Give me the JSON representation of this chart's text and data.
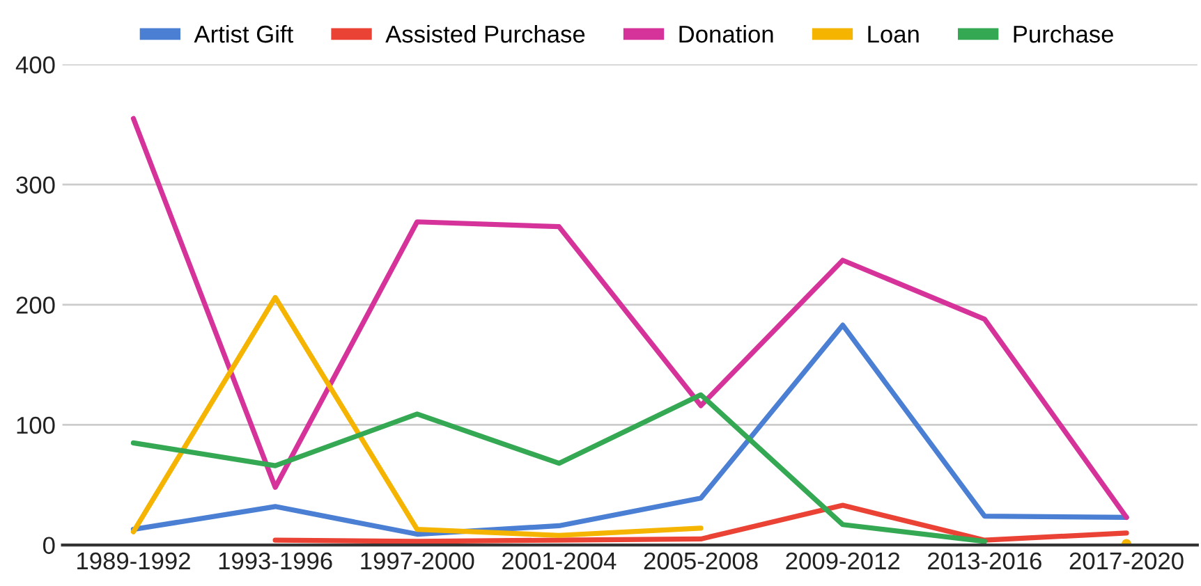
{
  "chart_data": {
    "type": "line",
    "categories": [
      "1989-1992",
      "1993-1996",
      "1997-2000",
      "2001-2004",
      "2005-2008",
      "2009-2012",
      "2013-2016",
      "2017-2020"
    ],
    "series": [
      {
        "name": "Artist Gift",
        "color": "#4a7fd4",
        "values": [
          13,
          32,
          9,
          16,
          39,
          183,
          24,
          23
        ]
      },
      {
        "name": "Assisted Purchase",
        "color": "#ea4335",
        "values": [
          null,
          4,
          3,
          4,
          5,
          33,
          4,
          10
        ]
      },
      {
        "name": "Donation",
        "color": "#d6339a",
        "values": [
          355,
          48,
          269,
          265,
          116,
          237,
          188,
          23
        ]
      },
      {
        "name": "Loan",
        "color": "#f4b400",
        "values": [
          11,
          206,
          13,
          8,
          14,
          null,
          null,
          1
        ]
      },
      {
        "name": "Purchase",
        "color": "#34a853",
        "values": [
          85,
          66,
          109,
          68,
          125,
          17,
          3,
          null
        ]
      }
    ],
    "ylim": [
      0,
      400
    ],
    "yticks": [
      0,
      100,
      200,
      300,
      400
    ],
    "grid": "y",
    "legend": "top",
    "line_style": "solid"
  }
}
